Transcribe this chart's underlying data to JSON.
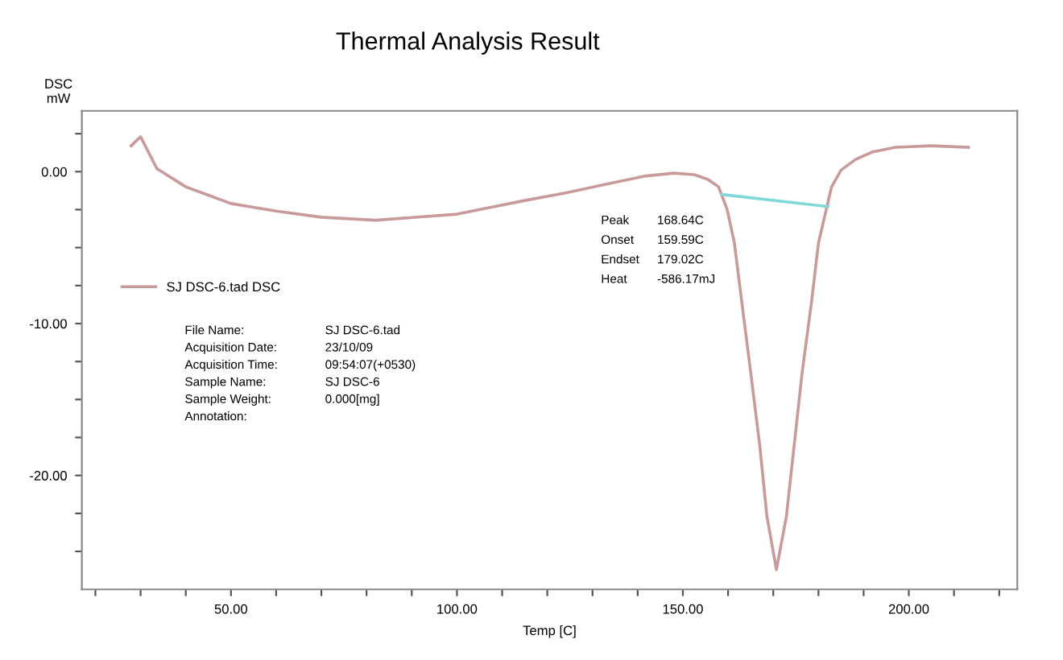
{
  "chart_data": {
    "type": "line",
    "title": "Thermal Analysis Result",
    "xlabel": "Temp [C]",
    "ylabel": "DSC\nmW",
    "xlim": [
      17,
      224
    ],
    "ylim": [
      -27.5,
      4
    ],
    "xticks": [
      {
        "value": 20,
        "label": null
      },
      {
        "value": 30,
        "label": null
      },
      {
        "value": 40,
        "label": null
      },
      {
        "value": 50,
        "label": "50.00"
      },
      {
        "value": 60,
        "label": null
      },
      {
        "value": 70,
        "label": null
      },
      {
        "value": 80,
        "label": null
      },
      {
        "value": 90,
        "label": null
      },
      {
        "value": 100,
        "label": "100.00"
      },
      {
        "value": 110,
        "label": null
      },
      {
        "value": 120,
        "label": null
      },
      {
        "value": 130,
        "label": null
      },
      {
        "value": 140,
        "label": null
      },
      {
        "value": 150,
        "label": "150.00"
      },
      {
        "value": 160,
        "label": null
      },
      {
        "value": 170,
        "label": null
      },
      {
        "value": 180,
        "label": null
      },
      {
        "value": 190,
        "label": null
      },
      {
        "value": 200,
        "label": "200.00"
      },
      {
        "value": 210,
        "label": null
      },
      {
        "value": 220,
        "label": null
      }
    ],
    "yticks": [
      {
        "value": 2.5,
        "label": null
      },
      {
        "value": 0,
        "label": "0.00"
      },
      {
        "value": -2.5,
        "label": null
      },
      {
        "value": -5,
        "label": null
      },
      {
        "value": -7.5,
        "label": null
      },
      {
        "value": -10,
        "label": "-10.00"
      },
      {
        "value": -12.5,
        "label": null
      },
      {
        "value": -15,
        "label": null
      },
      {
        "value": -17.5,
        "label": null
      },
      {
        "value": -20,
        "label": "-20.00"
      },
      {
        "value": -22.5,
        "label": null
      },
      {
        "value": -25,
        "label": null
      }
    ],
    "series": [
      {
        "name": "SJ DSC-6.tad DSC",
        "color": "#c99a9a",
        "x": [
          27.9,
          30,
          33.6,
          40,
          50,
          60,
          70,
          82,
          100,
          115,
          124,
          135,
          141.4,
          148,
          152.5,
          155.5,
          157.9,
          159.8,
          161.4,
          163,
          165,
          167,
          168.6,
          170.7,
          172.9,
          175,
          176.4,
          178.5,
          180,
          182.9,
          185,
          188.2,
          192,
          197,
          205,
          213.2
        ],
        "values": [
          1.7,
          2.3,
          0.2,
          -1.0,
          -2.1,
          -2.6,
          -3.0,
          -3.2,
          -2.8,
          -1.9,
          -1.4,
          -0.7,
          -0.3,
          -0.1,
          -0.2,
          -0.5,
          -1.0,
          -2.5,
          -4.7,
          -8.5,
          -13.2,
          -18.0,
          -22.7,
          -26.2,
          -22.7,
          -17.0,
          -13.2,
          -8.5,
          -4.7,
          -1.0,
          0.1,
          0.8,
          1.3,
          1.6,
          1.7,
          1.6
        ]
      },
      {
        "color": "#80d8d8",
        "x": [
          158.6,
          182.1
        ],
        "values": [
          -1.5,
          -2.3
        ]
      }
    ],
    "legend": "left",
    "grid": false,
    "line_style": "solid",
    "marker": "none",
    "annotations": [
      "File Name:\tSJ DSC-6.tad",
      "Acquisition Date:\t23/10/09",
      "Acquisition Time:\t09:54:07(+0530)",
      "Sample Name:\tSJ DSC-6",
      "Sample Weight:\t0.000[mg]",
      "Annotation:",
      "Peak\t168.64C",
      "Onset\t159.59C",
      "Endset\t179.02C",
      "Heat\t-586.17mJ"
    ]
  }
}
